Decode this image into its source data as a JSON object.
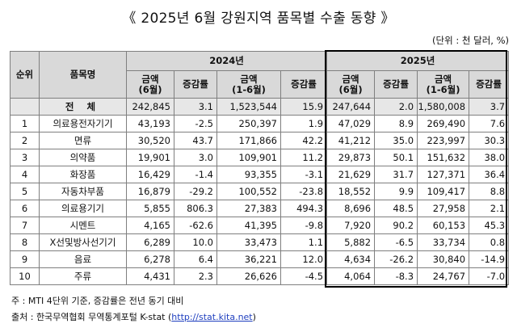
{
  "title": "《 2025년 6월 강원지역 품목별 수출 동향 》",
  "unit": "(단위 : 천 달러, %)",
  "header": {
    "rank": "순위",
    "item": "품목명",
    "year_2024": "2024년",
    "year_2025": "2025년",
    "sub": [
      "금액\n(6월)",
      "증감률",
      "금액\n(1-6월)",
      "증감률",
      "금액\n(6월)",
      "증감률",
      "금액\n(1-6월)",
      "증감률"
    ]
  },
  "total": {
    "rank": "",
    "name": "전 체",
    "values": [
      "242,845",
      "3.1",
      "1,523,544",
      "15.9",
      "247,644",
      "2.0",
      "1,580,008",
      "3.7"
    ]
  },
  "rows": [
    {
      "rank": "1",
      "name": "의료용전자기기",
      "values": [
        "43,193",
        "-2.5",
        "250,397",
        "1.9",
        "47,029",
        "8.9",
        "269,490",
        "7.6"
      ]
    },
    {
      "rank": "2",
      "name": "면류",
      "values": [
        "30,520",
        "43.7",
        "171,866",
        "42.2",
        "41,212",
        "35.0",
        "223,997",
        "30.3"
      ]
    },
    {
      "rank": "3",
      "name": "의약품",
      "values": [
        "19,901",
        "3.0",
        "109,901",
        "11.2",
        "29,873",
        "50.1",
        "151,632",
        "38.0"
      ]
    },
    {
      "rank": "4",
      "name": "화장품",
      "values": [
        "16,429",
        "-1.4",
        "93,355",
        "-3.1",
        "21,629",
        "31.7",
        "127,371",
        "36.4"
      ]
    },
    {
      "rank": "5",
      "name": "자동차부품",
      "values": [
        "16,879",
        "-29.2",
        "100,552",
        "-23.8",
        "18,552",
        "9.9",
        "109,417",
        "8.8"
      ]
    },
    {
      "rank": "6",
      "name": "의료용기기",
      "values": [
        "5,855",
        "806.3",
        "27,383",
        "494.3",
        "8,696",
        "48.5",
        "27,958",
        "2.1"
      ]
    },
    {
      "rank": "7",
      "name": "시멘트",
      "values": [
        "4,165",
        "-62.6",
        "41,395",
        "-9.8",
        "7,920",
        "90.2",
        "60,153",
        "45.3"
      ]
    },
    {
      "rank": "8",
      "name": "X선및방사선기기",
      "values": [
        "6,289",
        "10.0",
        "33,473",
        "1.1",
        "5,882",
        "-6.5",
        "33,734",
        "0.8"
      ]
    },
    {
      "rank": "9",
      "name": "음료",
      "values": [
        "6,278",
        "6.4",
        "36,221",
        "12.0",
        "4,634",
        "-26.2",
        "30,840",
        "-14.9"
      ]
    },
    {
      "rank": "10",
      "name": "주류",
      "values": [
        "4,431",
        "2.3",
        "26,626",
        "-4.5",
        "4,064",
        "-8.3",
        "24,767",
        "-7.0"
      ]
    }
  ],
  "notes": {
    "note1": "주 : MTI 4단위 기준, 증감률은 전년 동기 대비",
    "note2_prefix": "출처 : 한국무역협회 무역통계포털 K-stat (",
    "note2_link": "http://stat.kita.net",
    "note2_suffix": ")"
  }
}
